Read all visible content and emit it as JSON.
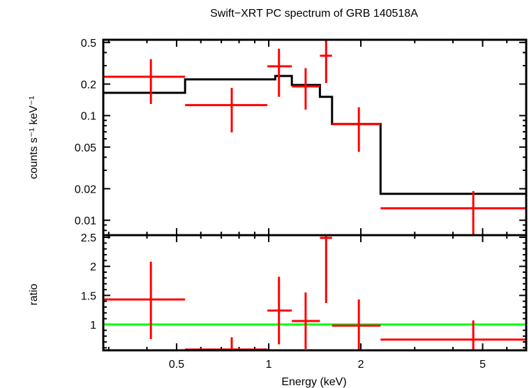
{
  "chart_data": [
    {
      "type": "scatter",
      "panel": "spectrum",
      "title": "Swift−XRT PC spectrum of GRB 140518A",
      "xlabel": "Energy (keV)",
      "ylabel": "counts s⁻¹ keV⁻¹",
      "xscale": "log",
      "yscale": "log",
      "xlim": [
        0.288,
        6.94
      ],
      "ylim": [
        0.0072,
        0.53
      ],
      "yticks": [
        0.01,
        0.02,
        0.05,
        0.1,
        0.2,
        0.5
      ],
      "ytick_labels": [
        "0.01",
        "0.02",
        "0.05",
        "0.1",
        "0.2",
        "0.5"
      ],
      "grid": false,
      "series": [
        {
          "name": "data",
          "color": "#ff0000",
          "points": [
            {
              "x": 0.412,
              "xlo": 0.288,
              "xhi": 0.533,
              "y": 0.235,
              "ylo": 0.129,
              "yhi": 0.346
            },
            {
              "x": 0.757,
              "xlo": 0.533,
              "xhi": 0.99,
              "y": 0.126,
              "ylo": 0.069,
              "yhi": 0.184
            },
            {
              "x": 1.08,
              "xlo": 0.99,
              "xhi": 1.19,
              "y": 0.296,
              "ylo": 0.151,
              "yhi": 0.435
            },
            {
              "x": 1.32,
              "xlo": 1.19,
              "xhi": 1.47,
              "y": 0.19,
              "ylo": 0.114,
              "yhi": 0.284
            },
            {
              "x": 1.54,
              "xlo": 1.47,
              "xhi": 1.61,
              "y": 0.373,
              "ylo": 0.205,
              "yhi": 0.548
            },
            {
              "x": 1.97,
              "xlo": 1.61,
              "xhi": 2.32,
              "y": 0.083,
              "ylo": 0.045,
              "yhi": 0.12
            },
            {
              "x": 4.66,
              "xlo": 2.32,
              "xhi": 6.94,
              "y": 0.013,
              "ylo": 0.0073,
              "yhi": 0.019
            }
          ]
        },
        {
          "name": "model",
          "color": "#000000",
          "steps": [
            {
              "xlo": 0.288,
              "xhi": 0.533,
              "y": 0.165
            },
            {
              "xlo": 0.533,
              "xhi": 0.99,
              "y": 0.222
            },
            {
              "xlo": 0.99,
              "xhi": 1.05,
              "y": 0.222
            },
            {
              "xlo": 1.05,
              "xhi": 1.19,
              "y": 0.239
            },
            {
              "xlo": 1.19,
              "xhi": 1.47,
              "y": 0.196
            },
            {
              "xlo": 1.47,
              "xhi": 1.61,
              "y": 0.151
            },
            {
              "xlo": 1.61,
              "xhi": 2.32,
              "y": 0.083
            },
            {
              "xlo": 2.32,
              "xhi": 6.94,
              "y": 0.0179
            }
          ]
        }
      ]
    },
    {
      "type": "scatter",
      "panel": "ratio",
      "xlabel": "Energy (keV)",
      "ylabel": "ratio",
      "xscale": "log",
      "yscale": "linear",
      "xlim": [
        0.288,
        6.94
      ],
      "ylim": [
        0.556,
        2.536
      ],
      "xticks": [
        0.5,
        1,
        2,
        5
      ],
      "xtick_labels": [
        "0.5",
        "1",
        "2",
        "5"
      ],
      "yticks": [
        1,
        1.5,
        2,
        2.5
      ],
      "ytick_labels": [
        "1",
        "1.5",
        "2",
        "2.5"
      ],
      "grid": false,
      "reference_line": {
        "y": 1,
        "color": "#00ff00"
      },
      "series": [
        {
          "name": "ratio",
          "color": "#ff0000",
          "points": [
            {
              "x": 0.412,
              "xlo": 0.288,
              "xhi": 0.533,
              "y": 1.43,
              "ylo": 0.75,
              "yhi": 2.08
            },
            {
              "x": 0.757,
              "xlo": 0.533,
              "xhi": 0.99,
              "y": 0.57,
              "ylo": 0.5,
              "yhi": 0.78
            },
            {
              "x": 1.08,
              "xlo": 0.99,
              "xhi": 1.19,
              "y": 1.24,
              "ylo": 0.66,
              "yhi": 1.82
            },
            {
              "x": 1.32,
              "xlo": 1.19,
              "xhi": 1.47,
              "y": 1.06,
              "ylo": 0.58,
              "yhi": 1.55
            },
            {
              "x": 1.54,
              "xlo": 1.47,
              "xhi": 1.61,
              "y": 2.49,
              "ylo": 1.37,
              "yhi": 2.6
            },
            {
              "x": 1.97,
              "xlo": 1.61,
              "xhi": 2.32,
              "y": 0.98,
              "ylo": 0.5,
              "yhi": 1.43
            },
            {
              "x": 4.66,
              "xlo": 2.32,
              "xhi": 6.94,
              "y": 0.74,
              "ylo": 0.5,
              "yhi": 1.07
            }
          ]
        }
      ]
    }
  ]
}
